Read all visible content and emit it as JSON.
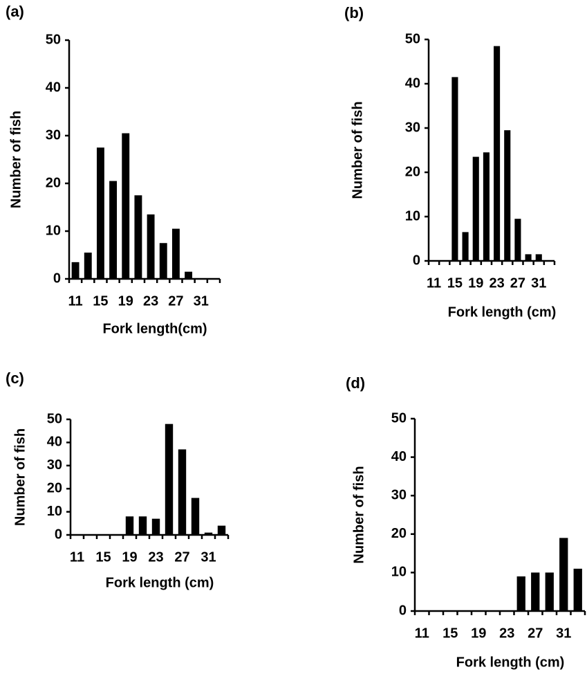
{
  "chart_data": [
    {
      "type": "bar",
      "title": "(a)",
      "x_label": "Fork length(cm)",
      "y_label": "Number of fish",
      "categories": [
        "11",
        null,
        "15",
        null,
        "19",
        null,
        "23",
        null,
        "27",
        null,
        "31",
        null
      ],
      "values": [
        3.5,
        5.5,
        27.5,
        20.5,
        30.5,
        17.5,
        13.5,
        7.5,
        10.5,
        1.5,
        0,
        0
      ],
      "color": "#000000",
      "ylim": [
        0,
        50
      ],
      "yticks": [
        0,
        10,
        20,
        30,
        40,
        50
      ]
    },
    {
      "type": "bar",
      "title": "(b)",
      "x_label": "Fork length (cm)",
      "y_label": "Number of fish",
      "categories": [
        "11",
        null,
        "15",
        null,
        "19",
        null,
        "23",
        null,
        "27",
        null,
        "31",
        null
      ],
      "values": [
        0,
        0,
        41.5,
        6.5,
        23.5,
        24.5,
        48.5,
        29.5,
        9.5,
        1.5,
        1.5,
        0
      ],
      "color": "#000000",
      "ylim": [
        0,
        50
      ],
      "yticks": [
        0,
        10,
        20,
        30,
        40,
        50
      ]
    },
    {
      "type": "bar",
      "title": "(c)",
      "x_label": "Fork length (cm)",
      "y_label": "Number of fish",
      "categories": [
        "11",
        null,
        "15",
        null,
        "19",
        null,
        "23",
        null,
        "27",
        null,
        "31",
        null
      ],
      "values": [
        0,
        0,
        0,
        0,
        8,
        8,
        7,
        48,
        37,
        16,
        1,
        4
      ],
      "color": "#000000",
      "ylim": [
        0,
        50
      ],
      "yticks": [
        0,
        10,
        20,
        30,
        40,
        50
      ]
    },
    {
      "type": "bar",
      "title": "(d)",
      "x_label": "Fork length (cm)",
      "y_label": "Number of fish",
      "categories": [
        "11",
        null,
        "15",
        null,
        "19",
        null,
        "23",
        null,
        "27",
        null,
        "31",
        null
      ],
      "values": [
        0,
        0,
        0,
        0,
        0,
        0,
        0,
        9,
        10,
        10,
        19,
        11
      ],
      "color": "#000000",
      "ylim": [
        0,
        50
      ],
      "yticks": [
        0,
        10,
        20,
        30,
        40,
        50
      ]
    }
  ]
}
